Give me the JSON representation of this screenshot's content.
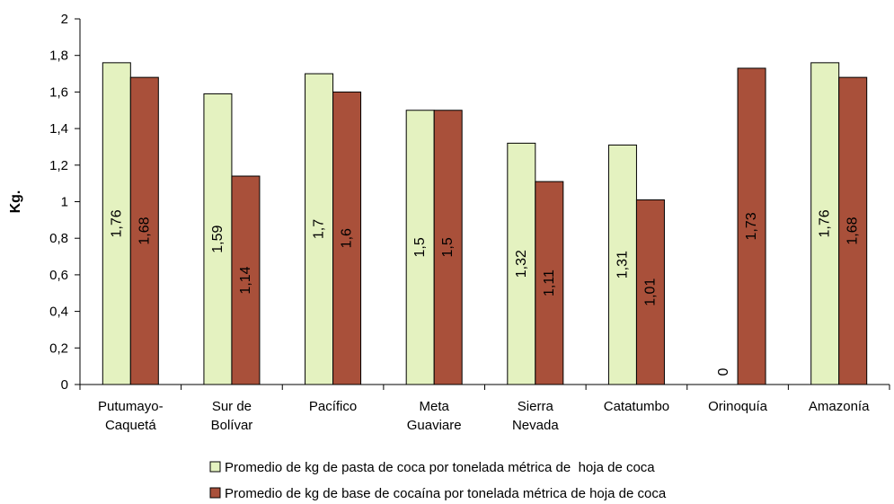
{
  "chart_data": {
    "type": "bar",
    "ylabel": "Kg.",
    "xlabel": "",
    "ylim": [
      0,
      2
    ],
    "yticks": [
      "0",
      "0,2",
      "0,4",
      "0,6",
      "0,8",
      "1",
      "1,2",
      "1,4",
      "1,6",
      "1,8",
      "2"
    ],
    "ytick_values": [
      0,
      0.2,
      0.4,
      0.6,
      0.8,
      1.0,
      1.2,
      1.4,
      1.6,
      1.8,
      2.0
    ],
    "categories": [
      [
        "Putumayo-",
        "Caquetá"
      ],
      [
        "Sur de",
        "Bolívar"
      ],
      [
        "Pacífico"
      ],
      [
        "Meta",
        "Guaviare"
      ],
      [
        "Sierra",
        "Nevada"
      ],
      [
        "Catatumbo"
      ],
      [
        "Orinoquía"
      ],
      [
        "Amazonía"
      ]
    ],
    "series": [
      {
        "name": "Promedio de kg de pasta de coca por tonelada métrica de  hoja de coca",
        "color": "#e4f2c0",
        "values": [
          1.76,
          1.59,
          1.7,
          1.5,
          1.32,
          1.31,
          0,
          1.76
        ],
        "labels": [
          "1,76",
          "1,59",
          "1,7",
          "1,5",
          "1,32",
          "1,31",
          "0",
          "1,76"
        ]
      },
      {
        "name": "Promedio de kg de base de cocaína por tonelada métrica de hoja de coca",
        "color": "#a9503a",
        "values": [
          1.68,
          1.14,
          1.6,
          1.5,
          1.11,
          1.01,
          1.73,
          1.68
        ],
        "labels": [
          "1,68",
          "1,14",
          "1,6",
          "1,5",
          "1,11",
          "1,01",
          "1,73",
          "1,68"
        ]
      }
    ],
    "grid": false,
    "legend_position": "bottom"
  }
}
